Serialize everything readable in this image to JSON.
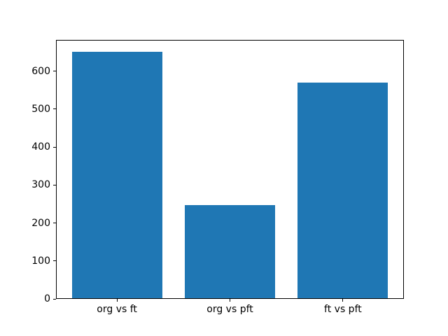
{
  "chart_data": {
    "type": "bar",
    "title": "",
    "xlabel": "",
    "ylabel": "",
    "categories": [
      "org vs ft",
      "org vs pft",
      "ft vs pft"
    ],
    "values": [
      650,
      246,
      569
    ],
    "bar_color": "#1f77b4",
    "bar_width": 0.8,
    "yticks": [
      0,
      100,
      200,
      300,
      400,
      500,
      600
    ],
    "ylim": [
      0,
      682.5
    ],
    "xlim": [
      -0.54,
      2.54
    ],
    "grid": false,
    "legend": null,
    "spine_color": "#000000",
    "tick_label_color": "#000000",
    "background_color": "#ffffff"
  }
}
